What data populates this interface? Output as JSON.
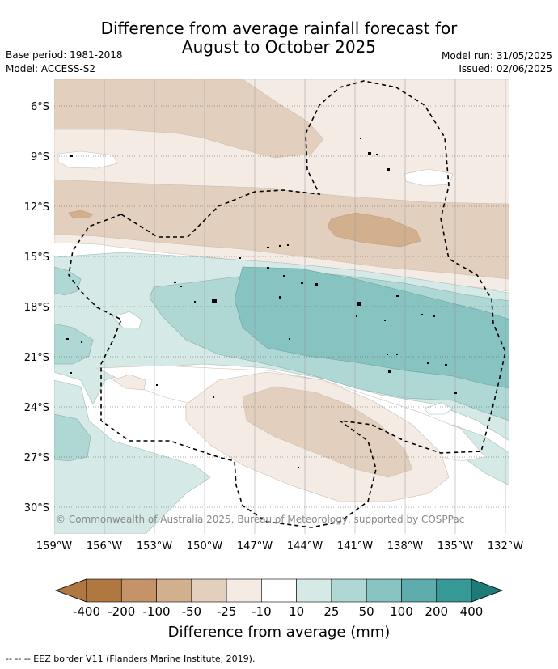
{
  "title_line1": "Difference from average rainfall forecast for",
  "title_line2": "August to October 2025",
  "base_period": "Base period: 1981-2018",
  "model": "Model: ACCESS-S2",
  "model_run": "Model run: 31/05/2025",
  "issued": "Issued: 02/06/2025",
  "copyright": "© Commonwealth of Australia 2025, Bureau of Meteorology, supported by COSPPac",
  "lat_labels": [
    "6°S",
    "9°S",
    "12°S",
    "15°S",
    "18°S",
    "21°S",
    "24°S",
    "27°S",
    "30°S"
  ],
  "lon_labels": [
    "159°W",
    "156°W",
    "153°W",
    "150°W",
    "147°W",
    "144°W",
    "141°W",
    "138°W",
    "135°W",
    "132°W"
  ],
  "colorbar": {
    "labels": [
      "-400",
      "-200",
      "-100",
      "-50",
      "-25",
      "-10",
      "10",
      "25",
      "50",
      "100",
      "200",
      "400"
    ],
    "colors": [
      "#b07840",
      "#c49468",
      "#d2b08e",
      "#e3cfbd",
      "#f4ebe5",
      "#ffffff",
      "#d5e9e6",
      "#afd8d5",
      "#86c3c1",
      "#5eadac",
      "#369996",
      "#1e7c78"
    ],
    "title": "Difference from average (mm)"
  },
  "footer": "--  --  -- EEZ border V11 (Flanders Marine Institute, 2019)."
}
